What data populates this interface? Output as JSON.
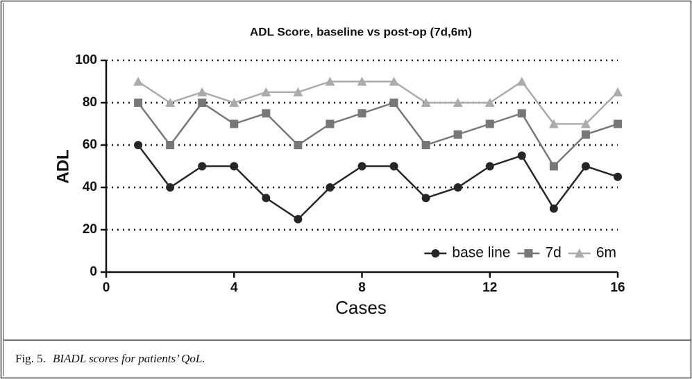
{
  "chart_data": {
    "type": "line",
    "title": "ADL Score, baseline vs post-op (7d,6m)",
    "xlabel": "Cases",
    "ylabel": "ADL",
    "x": [
      1,
      2,
      3,
      4,
      5,
      6,
      7,
      8,
      9,
      10,
      11,
      12,
      13,
      14,
      15,
      16
    ],
    "series": [
      {
        "name": "base line",
        "color": "#262626",
        "marker": "circle",
        "values": [
          60,
          40,
          50,
          50,
          35,
          25,
          40,
          50,
          50,
          35,
          40,
          50,
          55,
          30,
          50,
          45
        ]
      },
      {
        "name": "7d",
        "color": "#777777",
        "marker": "square",
        "values": [
          80,
          60,
          80,
          70,
          75,
          60,
          70,
          75,
          80,
          60,
          65,
          70,
          75,
          50,
          65,
          70
        ]
      },
      {
        "name": "6m",
        "color": "#ababab",
        "marker": "triangle",
        "values": [
          90,
          80,
          85,
          80,
          85,
          85,
          90,
          90,
          90,
          80,
          80,
          80,
          90,
          70,
          70,
          85
        ]
      }
    ],
    "xlim": [
      0,
      16
    ],
    "xticks": [
      0,
      4,
      8,
      12,
      16
    ],
    "ylim": [
      0,
      100
    ],
    "yticks": [
      0,
      20,
      40,
      60,
      80,
      100
    ],
    "grid": true,
    "legend": "lower right"
  },
  "caption": {
    "label": "Fig. 5.",
    "text": "BIADL scores for patients’ QoL."
  }
}
